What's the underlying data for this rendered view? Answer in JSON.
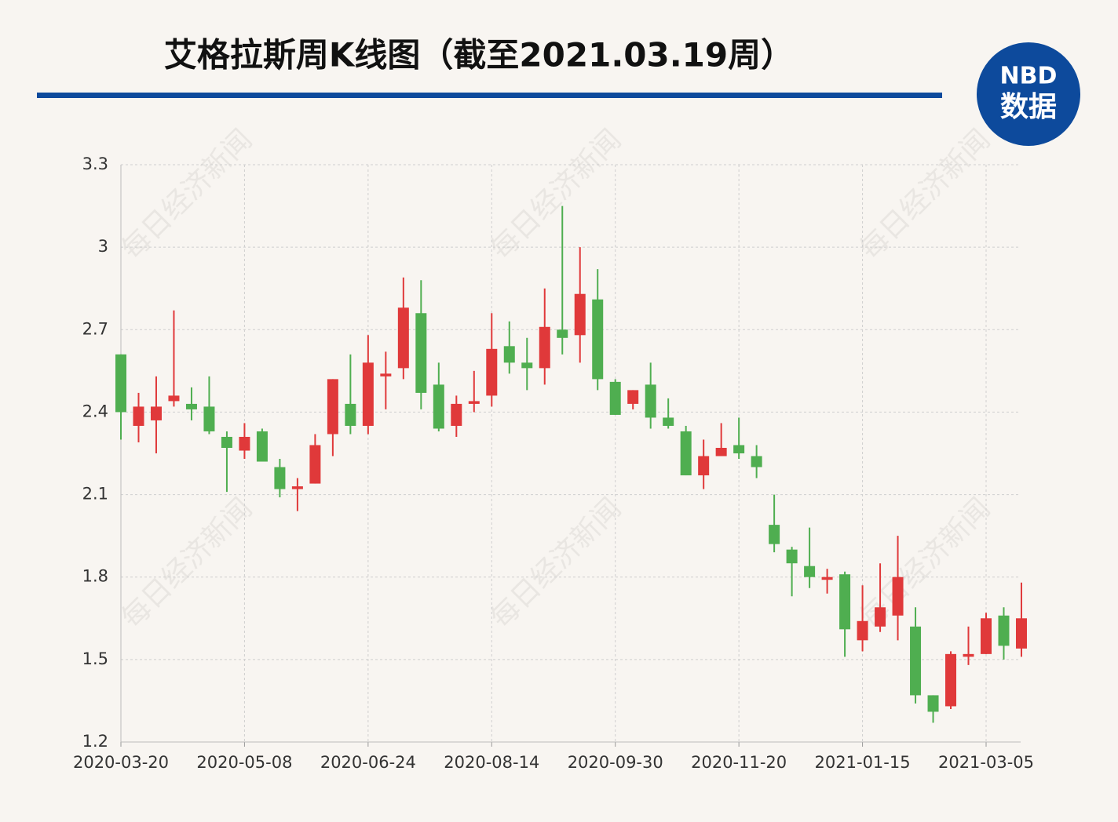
{
  "chart_data": {
    "type": "candlestick",
    "title": "艾格拉斯周K线图（截至2021.03.19周）",
    "logo": {
      "top": "NBD",
      "bottom": "数据"
    },
    "watermark": "每日经济新闻",
    "categories": [
      "2020-03-20",
      null,
      null,
      null,
      null,
      null,
      null,
      "2020-05-08",
      null,
      null,
      null,
      null,
      null,
      null,
      "2020-06-24",
      null,
      null,
      null,
      null,
      null,
      null,
      "2020-08-14",
      null,
      null,
      null,
      null,
      null,
      null,
      "2020-09-30",
      null,
      null,
      null,
      null,
      null,
      null,
      "2020-11-20",
      null,
      null,
      null,
      null,
      null,
      null,
      "2021-01-15",
      null,
      null,
      null,
      null,
      null,
      null,
      "2021-03-05",
      null,
      null
    ],
    "open": [
      2.61,
      2.35,
      2.37,
      2.44,
      2.43,
      2.42,
      2.31,
      2.26,
      2.33,
      2.2,
      2.12,
      2.14,
      2.32,
      2.43,
      2.35,
      2.53,
      2.56,
      2.76,
      2.5,
      2.35,
      2.43,
      2.46,
      2.64,
      2.58,
      2.56,
      2.7,
      2.68,
      2.81,
      2.51,
      2.43,
      2.5,
      2.38,
      2.33,
      2.17,
      2.24,
      2.28,
      2.24,
      1.99,
      1.9,
      1.84,
      1.79,
      1.81,
      1.57,
      1.62,
      1.66,
      1.62,
      1.37,
      1.33,
      1.51,
      1.52,
      1.66,
      1.54
    ],
    "close": [
      2.4,
      2.42,
      2.42,
      2.46,
      2.41,
      2.33,
      2.27,
      2.31,
      2.22,
      2.12,
      2.13,
      2.28,
      2.52,
      2.35,
      2.58,
      2.54,
      2.78,
      2.47,
      2.34,
      2.43,
      2.44,
      2.63,
      2.58,
      2.56,
      2.71,
      2.67,
      2.83,
      2.52,
      2.39,
      2.48,
      2.38,
      2.35,
      2.17,
      2.24,
      2.27,
      2.25,
      2.2,
      1.92,
      1.85,
      1.8,
      1.8,
      1.61,
      1.64,
      1.69,
      1.8,
      1.37,
      1.31,
      1.52,
      1.52,
      1.65,
      1.55,
      1.65
    ],
    "high": [
      2.61,
      2.47,
      2.53,
      2.77,
      2.49,
      2.53,
      2.33,
      2.36,
      2.34,
      2.23,
      2.16,
      2.32,
      2.52,
      2.61,
      2.68,
      2.62,
      2.89,
      2.88,
      2.58,
      2.46,
      2.55,
      2.76,
      2.73,
      2.67,
      2.85,
      3.15,
      3.0,
      2.92,
      2.52,
      2.48,
      2.58,
      2.45,
      2.35,
      2.3,
      2.36,
      2.38,
      2.28,
      2.1,
      1.91,
      1.98,
      1.83,
      1.82,
      1.77,
      1.85,
      1.95,
      1.69,
      1.37,
      1.53,
      1.62,
      1.67,
      1.69,
      1.78
    ],
    "low": [
      2.3,
      2.29,
      2.25,
      2.42,
      2.37,
      2.32,
      2.11,
      2.23,
      2.22,
      2.09,
      2.04,
      2.14,
      2.24,
      2.32,
      2.32,
      2.41,
      2.52,
      2.41,
      2.33,
      2.31,
      2.4,
      2.42,
      2.54,
      2.48,
      2.5,
      2.61,
      2.58,
      2.48,
      2.39,
      2.41,
      2.34,
      2.34,
      2.17,
      2.12,
      2.24,
      2.23,
      2.16,
      1.89,
      1.73,
      1.76,
      1.74,
      1.51,
      1.53,
      1.6,
      1.57,
      1.34,
      1.27,
      1.32,
      1.48,
      1.52,
      1.5,
      1.51
    ],
    "up_color": "#e0393a",
    "down_color": "#4fae50",
    "ylim": [
      1.2,
      3.3
    ],
    "yticks": [
      1.2,
      1.5,
      1.8,
      2.1,
      2.4,
      2.7,
      3,
      3.3
    ],
    "grid": true
  }
}
